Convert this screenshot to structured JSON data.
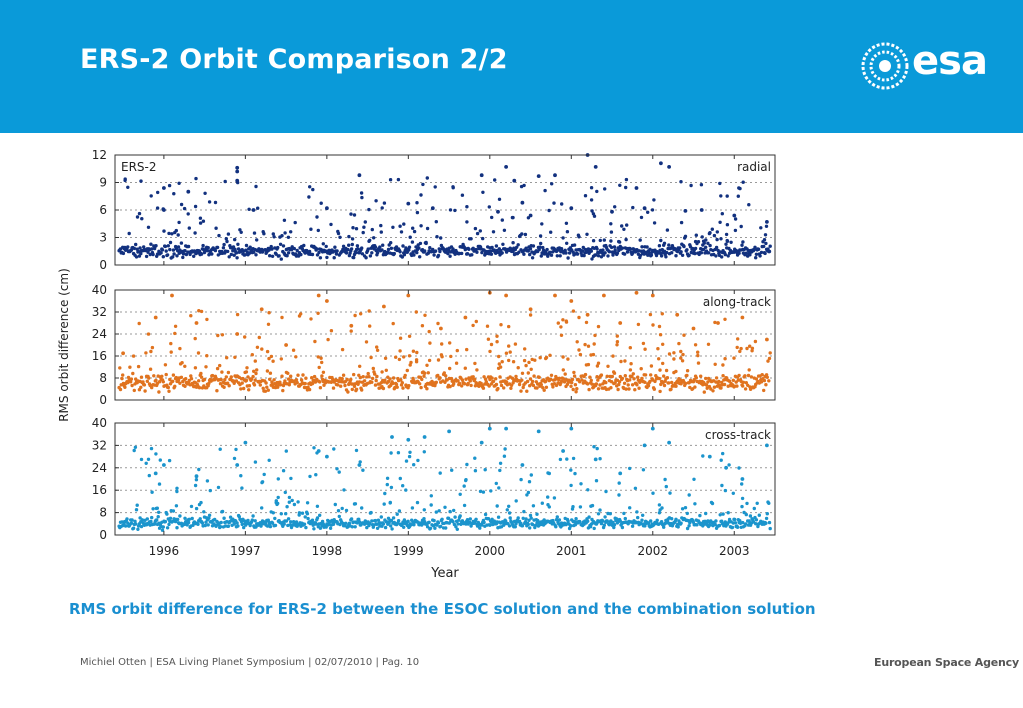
{
  "slide": {
    "title": "ERS-2 Orbit Comparison 2/2",
    "caption": "RMS orbit difference for ERS-2 between the ESOC solution and the combination solution",
    "footer": "Michiel Otten | ESA Living Planet Symposium | 02/07/2010 | Pag. 10",
    "agency": "European Space Agency",
    "logo_text": "esa"
  },
  "colors": {
    "header": "#0a9ad9",
    "radial": "#12317f",
    "along": "#e0731f",
    "cross": "#1b94cc"
  },
  "chart_data": {
    "type": "scatter",
    "ylabel": "RMS orbit difference (cm)",
    "xlabel": "Year",
    "xlim": [
      1995.4,
      2003.5
    ],
    "xticks": [
      1996,
      1997,
      1998,
      1999,
      2000,
      2001,
      2002,
      2003
    ],
    "grid": "horizontal-dotted",
    "panels": [
      {
        "name": "radial",
        "label": "radial",
        "sublabel": "ERS-2",
        "ylim": [
          0,
          12
        ],
        "yticks": [
          0,
          3,
          6,
          9,
          12
        ],
        "baseline": 1.4,
        "scatter": 0.9,
        "points": [
          [
            1996.0,
            8.4
          ],
          [
            1996.0,
            6.0
          ],
          [
            1996.3,
            8.0
          ],
          [
            1996.9,
            10.6
          ],
          [
            1996.9,
            10.2
          ],
          [
            1996.9,
            9.2
          ],
          [
            1997.1,
            6.0
          ],
          [
            1998.0,
            6.2
          ],
          [
            1998.4,
            9.8
          ],
          [
            1999.0,
            6.7
          ],
          [
            1999.3,
            6.2
          ],
          [
            1999.9,
            9.8
          ],
          [
            2000.1,
            5.8
          ],
          [
            2000.2,
            10.7
          ],
          [
            2000.3,
            9.2
          ],
          [
            2000.4,
            6.8
          ],
          [
            2000.5,
            5.4
          ],
          [
            2000.6,
            9.7
          ],
          [
            2000.8,
            9.8
          ],
          [
            2001.0,
            6.2
          ],
          [
            2001.2,
            12.0
          ],
          [
            2001.3,
            10.7
          ],
          [
            2001.5,
            5.8
          ],
          [
            2001.8,
            8.4
          ],
          [
            2001.9,
            6.2
          ],
          [
            2002.1,
            11.1
          ],
          [
            2002.2,
            10.7
          ],
          [
            2002.4,
            5.9
          ],
          [
            2002.6,
            6.0
          ],
          [
            2003.0,
            5.4
          ],
          [
            2003.4,
            4.7
          ]
        ]
      },
      {
        "name": "along-track",
        "label": "along-track",
        "ylim": [
          0,
          40
        ],
        "yticks": [
          0,
          8,
          16,
          24,
          32,
          40
        ],
        "baseline": 6,
        "scatter": 4,
        "points": [
          [
            1995.5,
            17
          ],
          [
            1995.9,
            30
          ],
          [
            1996.1,
            38
          ],
          [
            1996.4,
            28
          ],
          [
            1996.9,
            24
          ],
          [
            1997.2,
            33
          ],
          [
            1997.5,
            20
          ],
          [
            1997.9,
            38
          ],
          [
            1998.0,
            36
          ],
          [
            1998.3,
            27
          ],
          [
            1998.7,
            34
          ],
          [
            1999.0,
            38
          ],
          [
            1999.4,
            26
          ],
          [
            1999.7,
            30
          ],
          [
            2000.0,
            39
          ],
          [
            2000.2,
            38
          ],
          [
            2000.5,
            33
          ],
          [
            2000.8,
            38
          ],
          [
            2001.0,
            36
          ],
          [
            2001.2,
            31
          ],
          [
            2001.4,
            38
          ],
          [
            2001.6,
            28
          ],
          [
            2001.8,
            39
          ],
          [
            2002.0,
            38
          ],
          [
            2002.3,
            31
          ],
          [
            2002.5,
            26
          ],
          [
            2002.8,
            28
          ],
          [
            2003.1,
            30
          ],
          [
            2003.4,
            22
          ]
        ]
      },
      {
        "name": "cross-track",
        "label": "cross-track",
        "ylim": [
          0,
          40
        ],
        "yticks": [
          0,
          8,
          16,
          24,
          32,
          40
        ],
        "baseline": 4,
        "scatter": 2.5,
        "points": [
          [
            1995.9,
            22
          ],
          [
            1996.0,
            25
          ],
          [
            1996.4,
            21
          ],
          [
            1996.9,
            25
          ],
          [
            1997.0,
            33
          ],
          [
            1997.9,
            30
          ],
          [
            1998.0,
            28
          ],
          [
            1998.4,
            25
          ],
          [
            1998.8,
            35
          ],
          [
            1999.0,
            34
          ],
          [
            1999.2,
            35
          ],
          [
            1999.5,
            37
          ],
          [
            1999.9,
            33
          ],
          [
            2000.0,
            38
          ],
          [
            2000.2,
            38
          ],
          [
            2000.4,
            25
          ],
          [
            2000.6,
            37
          ],
          [
            2000.9,
            30
          ],
          [
            2001.0,
            38
          ],
          [
            2001.3,
            27
          ],
          [
            2001.6,
            22
          ],
          [
            2001.9,
            32
          ],
          [
            2002.0,
            38
          ],
          [
            2002.2,
            33
          ],
          [
            2002.7,
            28
          ],
          [
            2002.9,
            24
          ],
          [
            2003.1,
            20
          ],
          [
            2003.4,
            32
          ]
        ]
      }
    ]
  }
}
